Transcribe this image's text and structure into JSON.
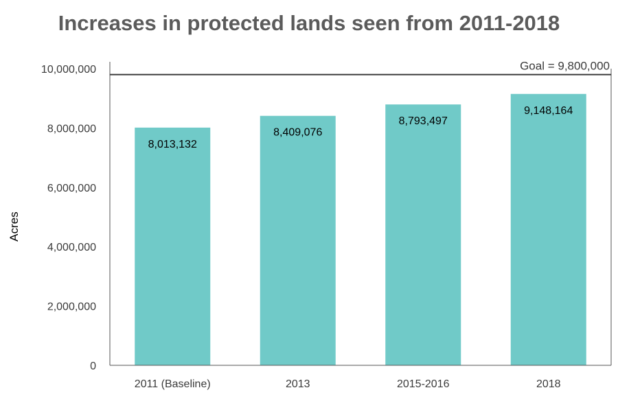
{
  "chart_data": {
    "type": "bar",
    "title": "Increases in protected lands seen from 2011-2018",
    "xlabel": "",
    "ylabel": "Acres",
    "categories": [
      "2011 (Baseline)",
      "2013",
      "2015-2016",
      "2018"
    ],
    "values": [
      8013132,
      8409076,
      8793497,
      9148164
    ],
    "value_labels": [
      "8,013,132",
      "8,409,076",
      "8,793,497",
      "9,148,164"
    ],
    "ylim": [
      0,
      10000000
    ],
    "yticks": [
      0,
      2000000,
      4000000,
      6000000,
      8000000,
      10000000
    ],
    "ytick_labels": [
      "0",
      "2,000,000",
      "4,000,000",
      "6,000,000",
      "8,000,000",
      "10,000,000"
    ],
    "goal": {
      "value": 9800000,
      "label": "Goal = 9,800,000"
    },
    "bar_color": "#70cac8",
    "grid": false,
    "legend": "none"
  }
}
